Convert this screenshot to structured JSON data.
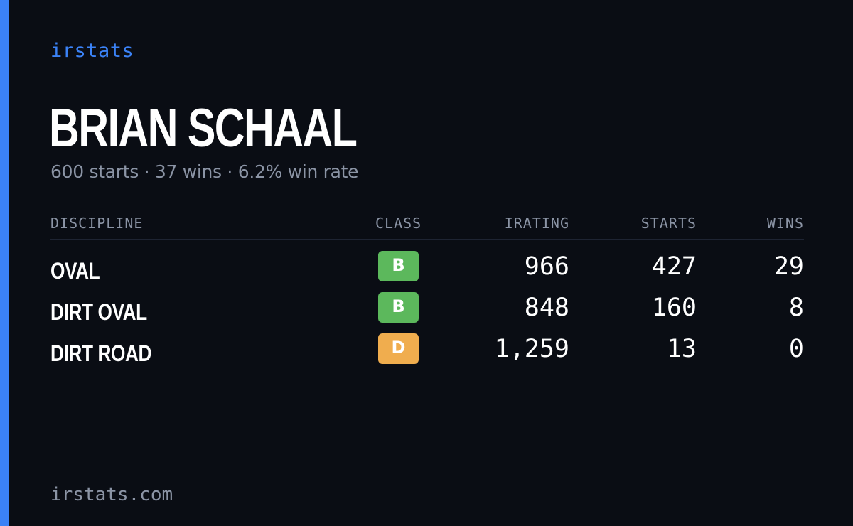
{
  "brand": "irstats",
  "driver": {
    "name": "BRIAN SCHAAL",
    "summary": "600 starts · 37 wins · 6.2% win rate"
  },
  "table": {
    "headers": {
      "discipline": "DISCIPLINE",
      "class": "CLASS",
      "irating": "IRATING",
      "starts": "STARTS",
      "wins": "WINS"
    },
    "rows": [
      {
        "discipline": "OVAL",
        "class": "B",
        "class_color": "#5cb85c",
        "irating": "966",
        "starts": "427",
        "wins": "29"
      },
      {
        "discipline": "DIRT OVAL",
        "class": "B",
        "class_color": "#5cb85c",
        "irating": "848",
        "starts": "160",
        "wins": "8"
      },
      {
        "discipline": "DIRT ROAD",
        "class": "D",
        "class_color": "#f0ad4e",
        "irating": "1,259",
        "starts": "13",
        "wins": "0"
      }
    ]
  },
  "footer": "irstats.com",
  "colors": {
    "background": "#0a0d14",
    "accent": "#3b82f6",
    "muted_text": "#8b94a5",
    "class_b": "#5cb85c",
    "class_d": "#f0ad4e"
  }
}
